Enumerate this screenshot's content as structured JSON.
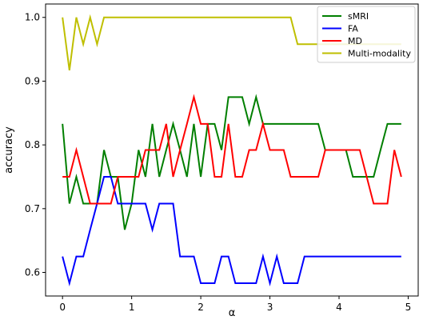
{
  "chart_data": {
    "type": "line",
    "title": "",
    "xlabel": "α",
    "ylabel": "accuracy",
    "xlim": [
      -0.245,
      5.145
    ],
    "ylim": [
      0.563,
      1.021
    ],
    "xticks": [
      0,
      1,
      2,
      3,
      4,
      5
    ],
    "yticks": [
      0.6,
      0.7,
      0.8,
      0.9,
      1.0
    ],
    "xtick_labels": [
      "0",
      "1",
      "2",
      "3",
      "4",
      "5"
    ],
    "ytick_labels": [
      "0.6",
      "0.7",
      "0.8",
      "0.9",
      "1.0"
    ],
    "grid": false,
    "legend_position": "top-right",
    "x": [
      0.0,
      0.1,
      0.2,
      0.3,
      0.4,
      0.5,
      0.6,
      0.7,
      0.8,
      0.9,
      1.0,
      1.1,
      1.2,
      1.3,
      1.4,
      1.5,
      1.6,
      1.7,
      1.8,
      1.9,
      2.0,
      2.1,
      2.2,
      2.3,
      2.4,
      2.5,
      2.6,
      2.7,
      2.8,
      2.9,
      3.0,
      3.1,
      3.2,
      3.3,
      3.4,
      3.5,
      3.6,
      3.7,
      3.8,
      3.9,
      4.0,
      4.1,
      4.2,
      4.3,
      4.4,
      4.5,
      4.6,
      4.7,
      4.8,
      4.9
    ],
    "series": [
      {
        "name": "sMRI",
        "color": "#007f00",
        "values": [
          0.833,
          0.708,
          0.75,
          0.708,
          0.708,
          0.708,
          0.792,
          0.75,
          0.75,
          0.667,
          0.708,
          0.792,
          0.75,
          0.833,
          0.75,
          0.792,
          0.833,
          0.792,
          0.75,
          0.833,
          0.75,
          0.833,
          0.833,
          0.792,
          0.875,
          0.875,
          0.875,
          0.833,
          0.875,
          0.833,
          0.833,
          0.833,
          0.833,
          0.833,
          0.833,
          0.833,
          0.833,
          0.833,
          0.792,
          0.792,
          0.792,
          0.792,
          0.75,
          0.75,
          0.75,
          0.75,
          0.792,
          0.833,
          0.833,
          0.833
        ]
      },
      {
        "name": "FA",
        "color": "#0000ff",
        "values": [
          0.625,
          0.583,
          0.625,
          0.625,
          0.667,
          0.708,
          0.75,
          0.75,
          0.708,
          0.708,
          0.708,
          0.708,
          0.708,
          0.667,
          0.708,
          0.708,
          0.708,
          0.625,
          0.625,
          0.625,
          0.583,
          0.583,
          0.583,
          0.625,
          0.625,
          0.583,
          0.583,
          0.583,
          0.583,
          0.625,
          0.583,
          0.625,
          0.583,
          0.583,
          0.583,
          0.625,
          0.625,
          0.625,
          0.625,
          0.625,
          0.625,
          0.625,
          0.625,
          0.625,
          0.625,
          0.625,
          0.625,
          0.625,
          0.625,
          0.625
        ]
      },
      {
        "name": "MD",
        "color": "#ff0000",
        "values": [
          0.75,
          0.75,
          0.792,
          0.75,
          0.708,
          0.708,
          0.708,
          0.708,
          0.75,
          0.75,
          0.75,
          0.75,
          0.792,
          0.792,
          0.792,
          0.833,
          0.75,
          0.792,
          0.833,
          0.875,
          0.833,
          0.833,
          0.75,
          0.75,
          0.833,
          0.75,
          0.75,
          0.792,
          0.792,
          0.833,
          0.792,
          0.792,
          0.792,
          0.75,
          0.75,
          0.75,
          0.75,
          0.75,
          0.792,
          0.792,
          0.792,
          0.792,
          0.792,
          0.792,
          0.75,
          0.708,
          0.708,
          0.708,
          0.792,
          0.75
        ]
      },
      {
        "name": "Multi-modality",
        "color": "#bfbf00",
        "values": [
          1.0,
          0.917,
          1.0,
          0.958,
          1.0,
          0.958,
          1.0,
          1.0,
          1.0,
          1.0,
          1.0,
          1.0,
          1.0,
          1.0,
          1.0,
          1.0,
          1.0,
          1.0,
          1.0,
          1.0,
          1.0,
          1.0,
          1.0,
          1.0,
          1.0,
          1.0,
          1.0,
          1.0,
          1.0,
          1.0,
          1.0,
          1.0,
          1.0,
          1.0,
          0.958,
          0.958,
          0.958,
          0.958,
          0.958,
          0.958,
          0.958,
          0.958,
          0.958,
          0.958,
          0.958,
          0.958,
          0.958,
          0.958,
          0.958,
          0.958
        ]
      }
    ]
  }
}
